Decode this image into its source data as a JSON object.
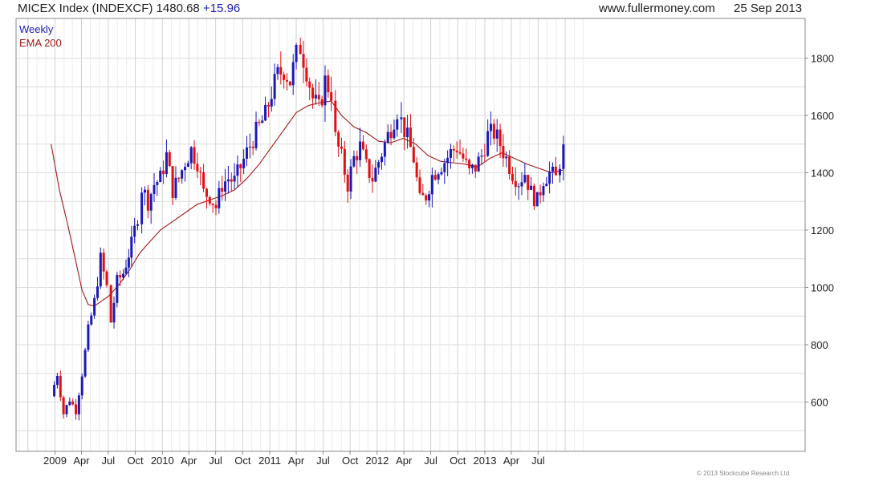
{
  "header": {
    "index_name": "MICEX Index (INDEXCF)",
    "last": "1480.68",
    "change": "+15.96",
    "website": "www.fullermoney.com",
    "date": "25 Sep 2013"
  },
  "legend": {
    "weekly": "Weekly",
    "ema": "EMA 200"
  },
  "footer": "© 2013 Stockcube Research Ltd",
  "colors": {
    "up": "#1a1ab8",
    "down": "#e01010",
    "ema": "#a01818",
    "grid": "#dcdcdc"
  },
  "chart_data": {
    "type": "candlestick",
    "title": "MICEX Index (INDEXCF)",
    "frequency": "Weekly",
    "ylim": [
      450,
      1900
    ],
    "yticks": [
      600,
      800,
      1000,
      1200,
      1400,
      1600,
      1800
    ],
    "grid": true,
    "legend_position": "top-left",
    "x_tick_labels": [
      "2009",
      "Apr",
      "Jul",
      "Oct",
      "2010",
      "Apr",
      "Jul",
      "Oct",
      "2011",
      "Apr",
      "Jul",
      "Oct",
      "2012",
      "Apr",
      "Jul",
      "Oct",
      "2013",
      "Apr",
      "Jul"
    ],
    "series": [
      {
        "name": "Weekly",
        "kind": "close",
        "points": [
          [
            "2008-12-19",
            620
          ],
          [
            "2009-01-09",
            700
          ],
          [
            "2009-01-30",
            560
          ],
          [
            "2009-02-20",
            610
          ],
          [
            "2009-03-13",
            570
          ],
          [
            "2009-04-03",
            700
          ],
          [
            "2009-04-24",
            850
          ],
          [
            "2009-05-15",
            950
          ],
          [
            "2009-06-05",
            1100
          ],
          [
            "2009-06-26",
            1000
          ],
          [
            "2009-07-10",
            880
          ],
          [
            "2009-07-31",
            1020
          ],
          [
            "2009-08-21",
            1050
          ],
          [
            "2009-09-18",
            1150
          ],
          [
            "2009-10-09",
            1250
          ],
          [
            "2009-10-23",
            1350
          ],
          [
            "2009-11-13",
            1300
          ],
          [
            "2009-12-04",
            1360
          ],
          [
            "2009-12-25",
            1380
          ],
          [
            "2010-01-15",
            1460
          ],
          [
            "2010-02-05",
            1340
          ],
          [
            "2010-02-26",
            1380
          ],
          [
            "2010-03-19",
            1440
          ],
          [
            "2010-04-09",
            1480
          ],
          [
            "2010-04-30",
            1440
          ],
          [
            "2010-05-21",
            1330
          ],
          [
            "2010-06-11",
            1320
          ],
          [
            "2010-07-02",
            1280
          ],
          [
            "2010-07-23",
            1360
          ],
          [
            "2010-08-13",
            1380
          ],
          [
            "2010-09-03",
            1370
          ],
          [
            "2010-09-24",
            1420
          ],
          [
            "2010-10-15",
            1470
          ],
          [
            "2010-11-05",
            1520
          ],
          [
            "2010-11-26",
            1560
          ],
          [
            "2010-12-17",
            1600
          ],
          [
            "2011-01-07",
            1680
          ],
          [
            "2011-01-28",
            1740
          ],
          [
            "2011-02-18",
            1760
          ],
          [
            "2011-03-11",
            1720
          ],
          [
            "2011-04-01",
            1810
          ],
          [
            "2011-04-15",
            1840
          ],
          [
            "2011-05-06",
            1760
          ],
          [
            "2011-05-27",
            1660
          ],
          [
            "2011-06-17",
            1620
          ],
          [
            "2011-07-08",
            1720
          ],
          [
            "2011-07-29",
            1680
          ],
          [
            "2011-08-12",
            1520
          ],
          [
            "2011-09-02",
            1450
          ],
          [
            "2011-09-23",
            1360
          ],
          [
            "2011-10-14",
            1450
          ],
          [
            "2011-11-04",
            1490
          ],
          [
            "2011-11-25",
            1420
          ],
          [
            "2011-12-16",
            1380
          ],
          [
            "2012-01-06",
            1440
          ],
          [
            "2012-01-27",
            1500
          ],
          [
            "2012-02-17",
            1560
          ],
          [
            "2012-03-09",
            1620
          ],
          [
            "2012-03-23",
            1580
          ],
          [
            "2012-04-13",
            1520
          ],
          [
            "2012-05-04",
            1450
          ],
          [
            "2012-05-25",
            1300
          ],
          [
            "2012-06-15",
            1320
          ],
          [
            "2012-07-06",
            1390
          ],
          [
            "2012-07-27",
            1420
          ],
          [
            "2012-08-17",
            1440
          ],
          [
            "2012-09-07",
            1470
          ],
          [
            "2012-09-28",
            1490
          ],
          [
            "2012-10-19",
            1450
          ],
          [
            "2012-11-09",
            1400
          ],
          [
            "2012-11-30",
            1420
          ],
          [
            "2012-12-21",
            1460
          ],
          [
            "2013-01-11",
            1530
          ],
          [
            "2013-02-01",
            1540
          ],
          [
            "2013-02-22",
            1500
          ],
          [
            "2013-03-15",
            1450
          ],
          [
            "2013-04-05",
            1400
          ],
          [
            "2013-04-26",
            1370
          ],
          [
            "2013-05-17",
            1400
          ],
          [
            "2013-06-07",
            1330
          ],
          [
            "2013-06-28",
            1300
          ],
          [
            "2013-07-19",
            1380
          ],
          [
            "2013-08-09",
            1400
          ],
          [
            "2013-08-30",
            1380
          ],
          [
            "2013-09-13",
            1440
          ],
          [
            "2013-09-25",
            1480
          ]
        ]
      },
      {
        "name": "EMA 200",
        "kind": "line",
        "points": [
          [
            "2008-12-19",
            1500
          ],
          [
            "2009-01-16",
            1340
          ],
          [
            "2009-02-13",
            1220
          ],
          [
            "2009-03-13",
            1090
          ],
          [
            "2009-04-03",
            990
          ],
          [
            "2009-04-24",
            940
          ],
          [
            "2009-05-15",
            935
          ],
          [
            "2009-06-05",
            950
          ],
          [
            "2009-07-03",
            970
          ],
          [
            "2009-08-07",
            1010
          ],
          [
            "2009-09-11",
            1060
          ],
          [
            "2009-10-16",
            1120
          ],
          [
            "2009-11-20",
            1160
          ],
          [
            "2009-12-25",
            1200
          ],
          [
            "2010-02-05",
            1230
          ],
          [
            "2010-03-19",
            1260
          ],
          [
            "2010-04-30",
            1290
          ],
          [
            "2010-06-11",
            1305
          ],
          [
            "2010-07-23",
            1320
          ],
          [
            "2010-09-03",
            1340
          ],
          [
            "2010-10-15",
            1380
          ],
          [
            "2010-11-26",
            1430
          ],
          [
            "2011-01-07",
            1490
          ],
          [
            "2011-02-18",
            1550
          ],
          [
            "2011-04-01",
            1610
          ],
          [
            "2011-05-13",
            1635
          ],
          [
            "2011-06-24",
            1645
          ],
          [
            "2011-07-29",
            1650
          ],
          [
            "2011-09-02",
            1600
          ],
          [
            "2011-10-14",
            1560
          ],
          [
            "2011-11-25",
            1540
          ],
          [
            "2012-01-06",
            1510
          ],
          [
            "2012-02-17",
            1505
          ],
          [
            "2012-03-30",
            1520
          ],
          [
            "2012-05-11",
            1500
          ],
          [
            "2012-06-22",
            1460
          ],
          [
            "2012-08-03",
            1440
          ],
          [
            "2012-09-14",
            1435
          ],
          [
            "2012-10-26",
            1430
          ],
          [
            "2012-12-07",
            1420
          ],
          [
            "2013-01-18",
            1450
          ],
          [
            "2013-03-01",
            1470
          ],
          [
            "2013-04-12",
            1450
          ],
          [
            "2013-05-24",
            1430
          ],
          [
            "2013-07-05",
            1415
          ],
          [
            "2013-08-16",
            1400
          ],
          [
            "2013-09-25",
            1410
          ]
        ]
      }
    ]
  }
}
